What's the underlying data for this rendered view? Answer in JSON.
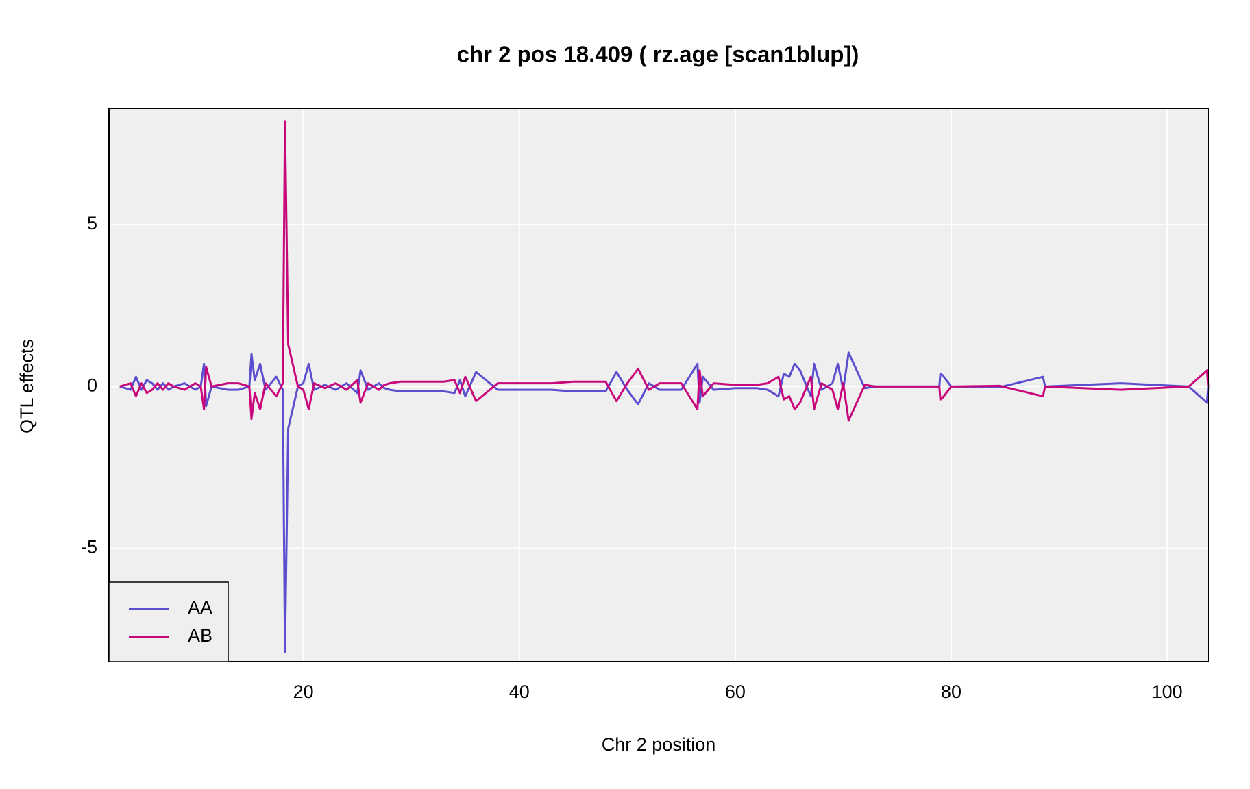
{
  "chart_data": {
    "type": "line",
    "title": "chr 2 pos 18.409 ( rz.age  [scan1blup])",
    "xlabel": "Chr 2 position",
    "ylabel": "QTL effects",
    "x": [
      3,
      4,
      4.5,
      5,
      5.5,
      6,
      6.5,
      7,
      7.5,
      8,
      9,
      10,
      10.5,
      10.8,
      11,
      11.5,
      13,
      14,
      15,
      15.2,
      15.5,
      16,
      16.5,
      17.5,
      18.1,
      18.3,
      18.6,
      19.5,
      20,
      20.5,
      21,
      22,
      23,
      24,
      25,
      25.3,
      26,
      27,
      27.5,
      28,
      29,
      30,
      33,
      34,
      34.5,
      35,
      36,
      38,
      40,
      43,
      45,
      48,
      49,
      50,
      51,
      52,
      53,
      55,
      56.5,
      56.7,
      57,
      58,
      60,
      62,
      63,
      64,
      64.5,
      65,
      65.5,
      66,
      67,
      67.3,
      68,
      69,
      69.5,
      70,
      70.5,
      72,
      73,
      78.9,
      79,
      79.2,
      80,
      84.5,
      88.5,
      88.7,
      95.7,
      102,
      103.7,
      103.8
    ],
    "series": [
      {
        "name": "AA",
        "color": "#5b4fcf",
        "values": [
          0,
          -0.1,
          0.3,
          -0.1,
          0.2,
          0.1,
          -0.1,
          0.1,
          -0.1,
          0,
          0.1,
          -0.1,
          0,
          0.7,
          -0.6,
          0,
          -0.1,
          -0.1,
          0,
          1.0,
          0.2,
          0.7,
          -0.1,
          0.3,
          -0.1,
          -8.2,
          -1.3,
          0,
          0.1,
          0.7,
          -0.1,
          0.05,
          -0.1,
          0.1,
          -0.2,
          0.5,
          -0.1,
          0.1,
          -0.05,
          -0.1,
          -0.15,
          -0.15,
          -0.15,
          -0.2,
          0.2,
          -0.3,
          0.45,
          -0.1,
          -0.1,
          -0.1,
          -0.15,
          -0.15,
          0.45,
          -0.1,
          -0.55,
          0.1,
          -0.1,
          -0.1,
          0.7,
          -0.5,
          0.3,
          -0.1,
          -0.05,
          -0.05,
          -0.1,
          -0.3,
          0.4,
          0.3,
          0.7,
          0.5,
          -0.3,
          0.7,
          -0.1,
          0.1,
          0.7,
          -0.1,
          1.05,
          -0.05,
          0,
          0,
          0.4,
          0.35,
          0,
          -0.02,
          0.3,
          0,
          0.1,
          0,
          -0.5,
          0
        ]
      },
      {
        "name": "AB",
        "color": "#c8087a",
        "values": [
          0,
          0.1,
          -0.3,
          0.1,
          -0.2,
          -0.1,
          0.1,
          -0.1,
          0.1,
          0,
          -0.1,
          0.1,
          0,
          -0.7,
          0.6,
          0,
          0.1,
          0.1,
          0,
          -1.0,
          -0.2,
          -0.7,
          0.1,
          -0.3,
          0.1,
          8.2,
          1.3,
          0,
          -0.1,
          -0.7,
          0.1,
          -0.05,
          0.1,
          -0.1,
          0.2,
          -0.5,
          0.1,
          -0.1,
          0.05,
          0.1,
          0.15,
          0.15,
          0.15,
          0.2,
          -0.2,
          0.3,
          -0.45,
          0.1,
          0.1,
          0.1,
          0.15,
          0.15,
          -0.45,
          0.1,
          0.55,
          -0.1,
          0.1,
          0.1,
          -0.7,
          0.5,
          -0.3,
          0.1,
          0.05,
          0.05,
          0.1,
          0.3,
          -0.4,
          -0.3,
          -0.7,
          -0.5,
          0.3,
          -0.7,
          0.1,
          -0.1,
          -0.7,
          0.1,
          -1.05,
          0.05,
          0,
          0,
          -0.4,
          -0.35,
          0,
          0.02,
          -0.3,
          0,
          -0.1,
          0,
          0.5,
          0
        ]
      }
    ],
    "xlim": [
      2,
      103.8
    ],
    "xticks": [
      20,
      40,
      60,
      80,
      100
    ],
    "ylim": [
      -8.5,
      8.6
    ],
    "yticks": [
      -5,
      0,
      5
    ],
    "grid": true,
    "legend": "bottomleft"
  }
}
